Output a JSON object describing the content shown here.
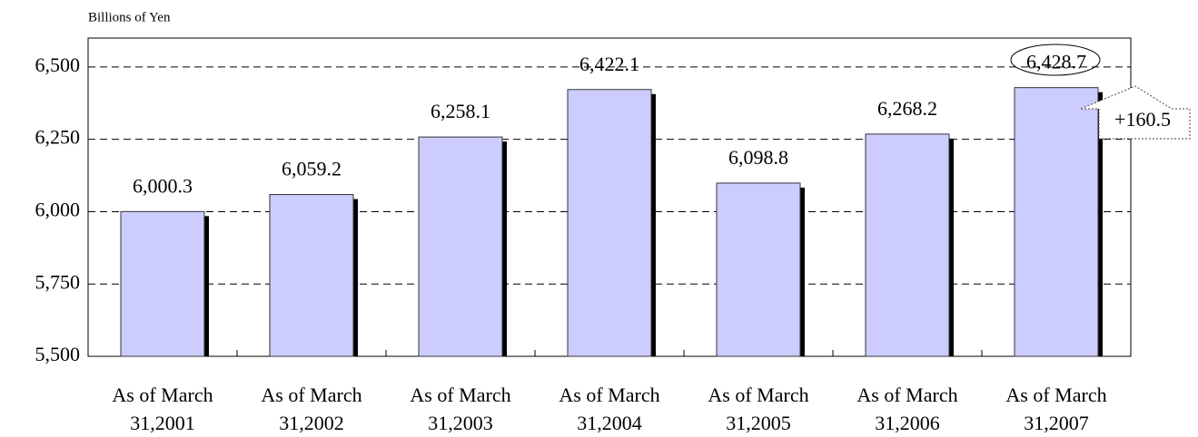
{
  "chart_data": {
    "type": "bar",
    "y_axis_label": "Billions of Yen",
    "categories": [
      "As of March 31,2001",
      "As of March 31,2002",
      "As of March 31,2003",
      "As of March 31,2004",
      "As of March 31,2005",
      "As of March 31,2006",
      "As of March 31,2007"
    ],
    "values": [
      6000.3,
      6059.2,
      6258.1,
      6422.1,
      6098.8,
      6268.2,
      6428.7
    ],
    "value_labels": [
      "6,000.3",
      "6,059.2",
      "6,258.1",
      "6,422.1",
      "6,098.8",
      "6,268.2",
      "6,428.7"
    ],
    "color": "#ccccff",
    "ylim": [
      5500,
      6600
    ],
    "yticks": [
      {
        "value": 5500,
        "label": "5,500"
      },
      {
        "value": 5750,
        "label": "5,750"
      },
      {
        "value": 6000,
        "label": "6,000"
      },
      {
        "value": 6250,
        "label": "6,250"
      },
      {
        "value": 6500,
        "label": "6,500"
      }
    ],
    "grid": true,
    "annotation": "+160.5"
  }
}
